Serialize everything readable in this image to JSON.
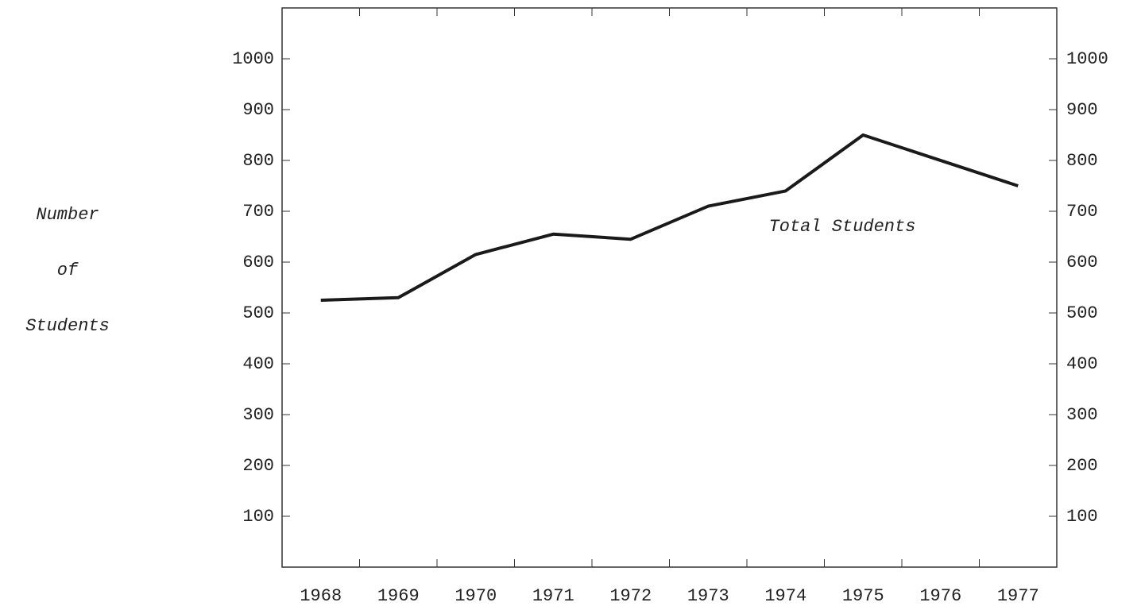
{
  "chart_data": {
    "type": "line",
    "x": [
      1968,
      1969,
      1970,
      1971,
      1972,
      1973,
      1974,
      1975,
      1977
    ],
    "series": [
      {
        "name": "Total Students",
        "color": "#1a1a1a",
        "values": [
          525,
          530,
          615,
          655,
          645,
          710,
          740,
          850,
          750
        ]
      }
    ],
    "xlim": [
      1967.5,
      1977.5
    ],
    "xticks": [
      1968,
      1969,
      1970,
      1971,
      1972,
      1973,
      1974,
      1975,
      1976,
      1977
    ],
    "ylim": [
      0,
      1100
    ],
    "yticks": [
      100,
      200,
      300,
      400,
      500,
      600,
      700,
      800,
      900,
      1000
    ],
    "y2lim": [
      0,
      1100
    ],
    "y2ticks": [
      100,
      200,
      300,
      400,
      500,
      600,
      700,
      800,
      900,
      1000
    ],
    "y_label": [
      "Number",
      "of",
      "Students"
    ],
    "grid": false
  }
}
